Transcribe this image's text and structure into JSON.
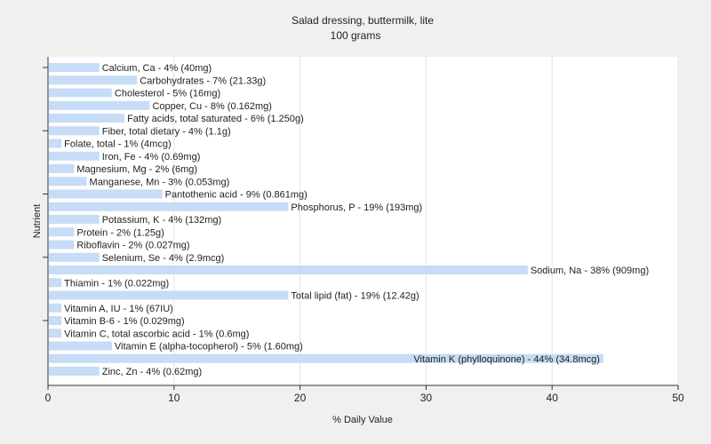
{
  "chart_data": {
    "type": "bar",
    "orientation": "horizontal",
    "title": "Salad dressing, buttermilk, lite",
    "subtitle": "100 grams",
    "xlabel": "% Daily Value",
    "ylabel": "Nutrient",
    "xlim": [
      0,
      50
    ],
    "xticks": [
      0,
      10,
      20,
      30,
      40,
      50
    ],
    "grid": true,
    "bar_color": "#c6dcf7",
    "categories": [
      "Calcium, Ca",
      "Carbohydrates",
      "Cholesterol",
      "Copper, Cu",
      "Fatty acids, total saturated",
      "Fiber, total dietary",
      "Folate, total",
      "Iron, Fe",
      "Magnesium, Mg",
      "Manganese, Mn",
      "Pantothenic acid",
      "Phosphorus, P",
      "Potassium, K",
      "Protein",
      "Riboflavin",
      "Selenium, Se",
      "Sodium, Na",
      "Thiamin",
      "Total lipid (fat)",
      "Vitamin A, IU",
      "Vitamin B-6",
      "Vitamin C, total ascorbic acid",
      "Vitamin E (alpha-tocopherol)",
      "Vitamin K (phylloquinone)",
      "Zinc, Zn"
    ],
    "values": [
      4,
      7,
      5,
      8,
      6,
      4,
      1,
      4,
      2,
      3,
      9,
      19,
      4,
      2,
      2,
      4,
      38,
      1,
      19,
      1,
      1,
      1,
      5,
      44,
      4
    ],
    "labels": [
      "Calcium, Ca - 4% (40mg)",
      "Carbohydrates - 7% (21.33g)",
      "Cholesterol - 5% (16mg)",
      "Copper, Cu - 8% (0.162mg)",
      "Fatty acids, total saturated - 6% (1.250g)",
      "Fiber, total dietary - 4% (1.1g)",
      "Folate, total - 1% (4mcg)",
      "Iron, Fe - 4% (0.69mg)",
      "Magnesium, Mg - 2% (6mg)",
      "Manganese, Mn - 3% (0.053mg)",
      "Pantothenic acid - 9% (0.861mg)",
      "Phosphorus, P - 19% (193mg)",
      "Potassium, K - 4% (132mg)",
      "Protein - 2% (1.25g)",
      "Riboflavin - 2% (0.027mg)",
      "Selenium, Se - 4% (2.9mcg)",
      "Sodium, Na - 38% (909mg)",
      "Thiamin - 1% (0.022mg)",
      "Total lipid (fat) - 19% (12.42g)",
      "Vitamin A, IU - 1% (67IU)",
      "Vitamin B-6 - 1% (0.029mg)",
      "Vitamin C, total ascorbic acid - 1% (0.6mg)",
      "Vitamin E (alpha-tocopherol) - 5% (1.60mg)",
      "Vitamin K (phylloquinone) - 44% (34.8mcg)",
      "Zinc, Zn - 4% (0.62mg)"
    ],
    "label_inside_bar": [
      false,
      false,
      false,
      false,
      false,
      false,
      false,
      false,
      false,
      false,
      false,
      false,
      false,
      false,
      false,
      false,
      false,
      false,
      false,
      false,
      false,
      false,
      false,
      true,
      false
    ]
  }
}
